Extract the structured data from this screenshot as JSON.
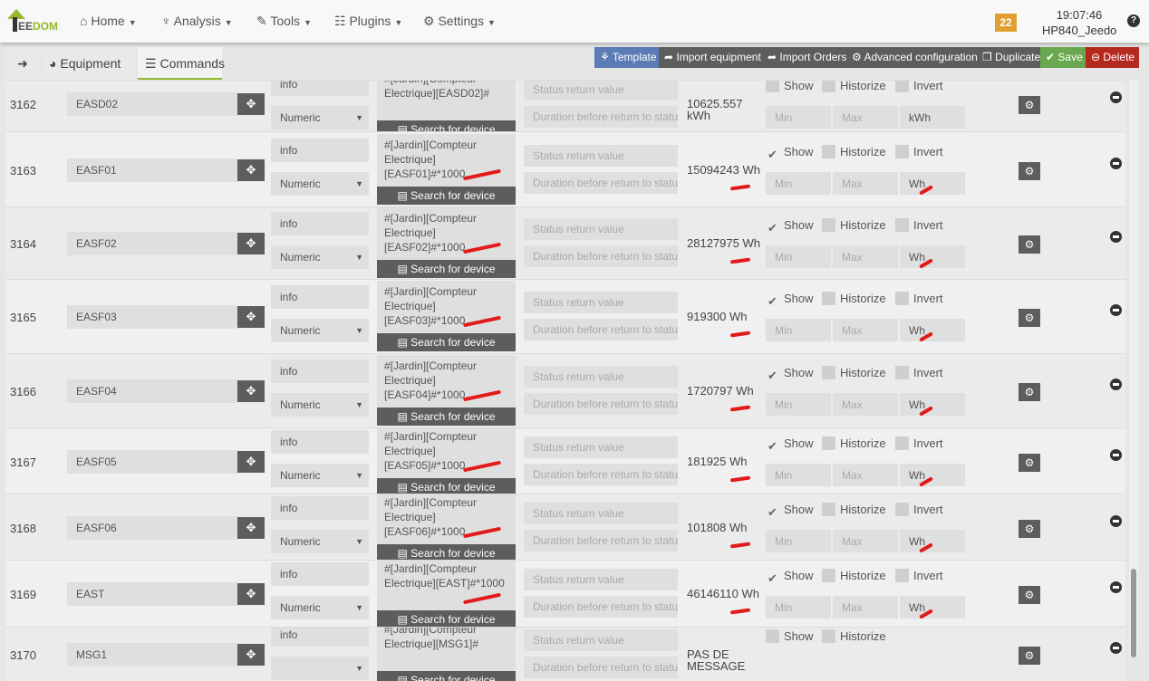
{
  "nav": {
    "logo": "JEEDOM",
    "menus": [
      {
        "label": "Home",
        "icon": "home-icon"
      },
      {
        "label": "Analysis",
        "icon": "stethoscope-icon"
      },
      {
        "label": "Tools",
        "icon": "wrench-icon"
      },
      {
        "label": "Plugins",
        "icon": "list-icon"
      },
      {
        "label": "Settings",
        "icon": "cog-icon"
      }
    ],
    "badge": "22",
    "time": "19:07:46",
    "host": "HP840_Jeedom",
    "help": "?"
  },
  "tabs": {
    "back": "back-icon",
    "equipment": "Equipment",
    "commands": "Commands"
  },
  "toolbar": {
    "template": "Template",
    "import_equipment": "Import equipment",
    "import_orders": "Import Orders",
    "advanced": "Advanced configuration",
    "duplicate": "Duplicate",
    "save": "Save",
    "delete": "Delete",
    "colors": {
      "template": "#5b7cb5",
      "dark": "#5d5d5d",
      "save": "#6aa84f",
      "delete": "#b52a1f"
    }
  },
  "labels": {
    "search": "Search for device",
    "status_ph": "Status return value",
    "duration_ph": "Duration before return to status value",
    "show": "Show",
    "historize": "Historize",
    "invert": "Invert",
    "min_ph": "Min",
    "max_ph": "Max"
  },
  "rows": [
    {
      "id": "3162",
      "name": "EASD02",
      "type": "info",
      "subtype": "Numeric",
      "calc": "#[Jardin][Compteur Electrique][EASD02]#",
      "value": "10625.557 kWh",
      "show": false,
      "unit": "kWh"
    },
    {
      "id": "3163",
      "name": "EASF01",
      "type": "info",
      "subtype": "Numeric",
      "calc": "#[Jardin][Compteur Electrique][EASF01]#*1000",
      "value": "15094243 Wh",
      "show": true,
      "unit": "Wh"
    },
    {
      "id": "3164",
      "name": "EASF02",
      "type": "info",
      "subtype": "Numeric",
      "calc": "#[Jardin][Compteur Electrique] [EASF02]#*1000",
      "value": "28127975 Wh",
      "show": true,
      "unit": "Wh"
    },
    {
      "id": "3165",
      "name": "EASF03",
      "type": "info",
      "subtype": "Numeric",
      "calc": "#[Jardin][Compteur Electrique][EASF03]#*1000",
      "value": "919300 Wh",
      "show": true,
      "unit": "Wh"
    },
    {
      "id": "3166",
      "name": "EASF04",
      "type": "info",
      "subtype": "Numeric",
      "calc": "#[Jardin][Compteur Electrique][EASF04]#*1000",
      "value": "1720797 Wh",
      "show": true,
      "unit": "Wh"
    },
    {
      "id": "3167",
      "name": "EASF05",
      "type": "info",
      "subtype": "Numeric",
      "calc": "#[Jardin][Compteur Electrique] [EASF05]#*1000",
      "value": "181925 Wh",
      "show": true,
      "unit": "Wh"
    },
    {
      "id": "3168",
      "name": "EASF06",
      "type": "info",
      "subtype": "Numeric",
      "calc": "#[Jardin][Compteur Electrique] [EASF06]#*1000",
      "value": "101808 Wh",
      "show": true,
      "unit": "Wh"
    },
    {
      "id": "3169",
      "name": "EAST",
      "type": "info",
      "subtype": "Numeric",
      "calc": "#[Jardin][Compteur Electrique][EAST]#*1000",
      "value": "46146110 Wh",
      "show": true,
      "unit": "Wh"
    },
    {
      "id": "3170",
      "name": "MSG1",
      "type": "info",
      "subtype": "",
      "calc": "#[Jardin][Compteur Electrique][MSG1]#",
      "value": "PAS DE MESSAGE",
      "show": false,
      "unit": ""
    }
  ]
}
